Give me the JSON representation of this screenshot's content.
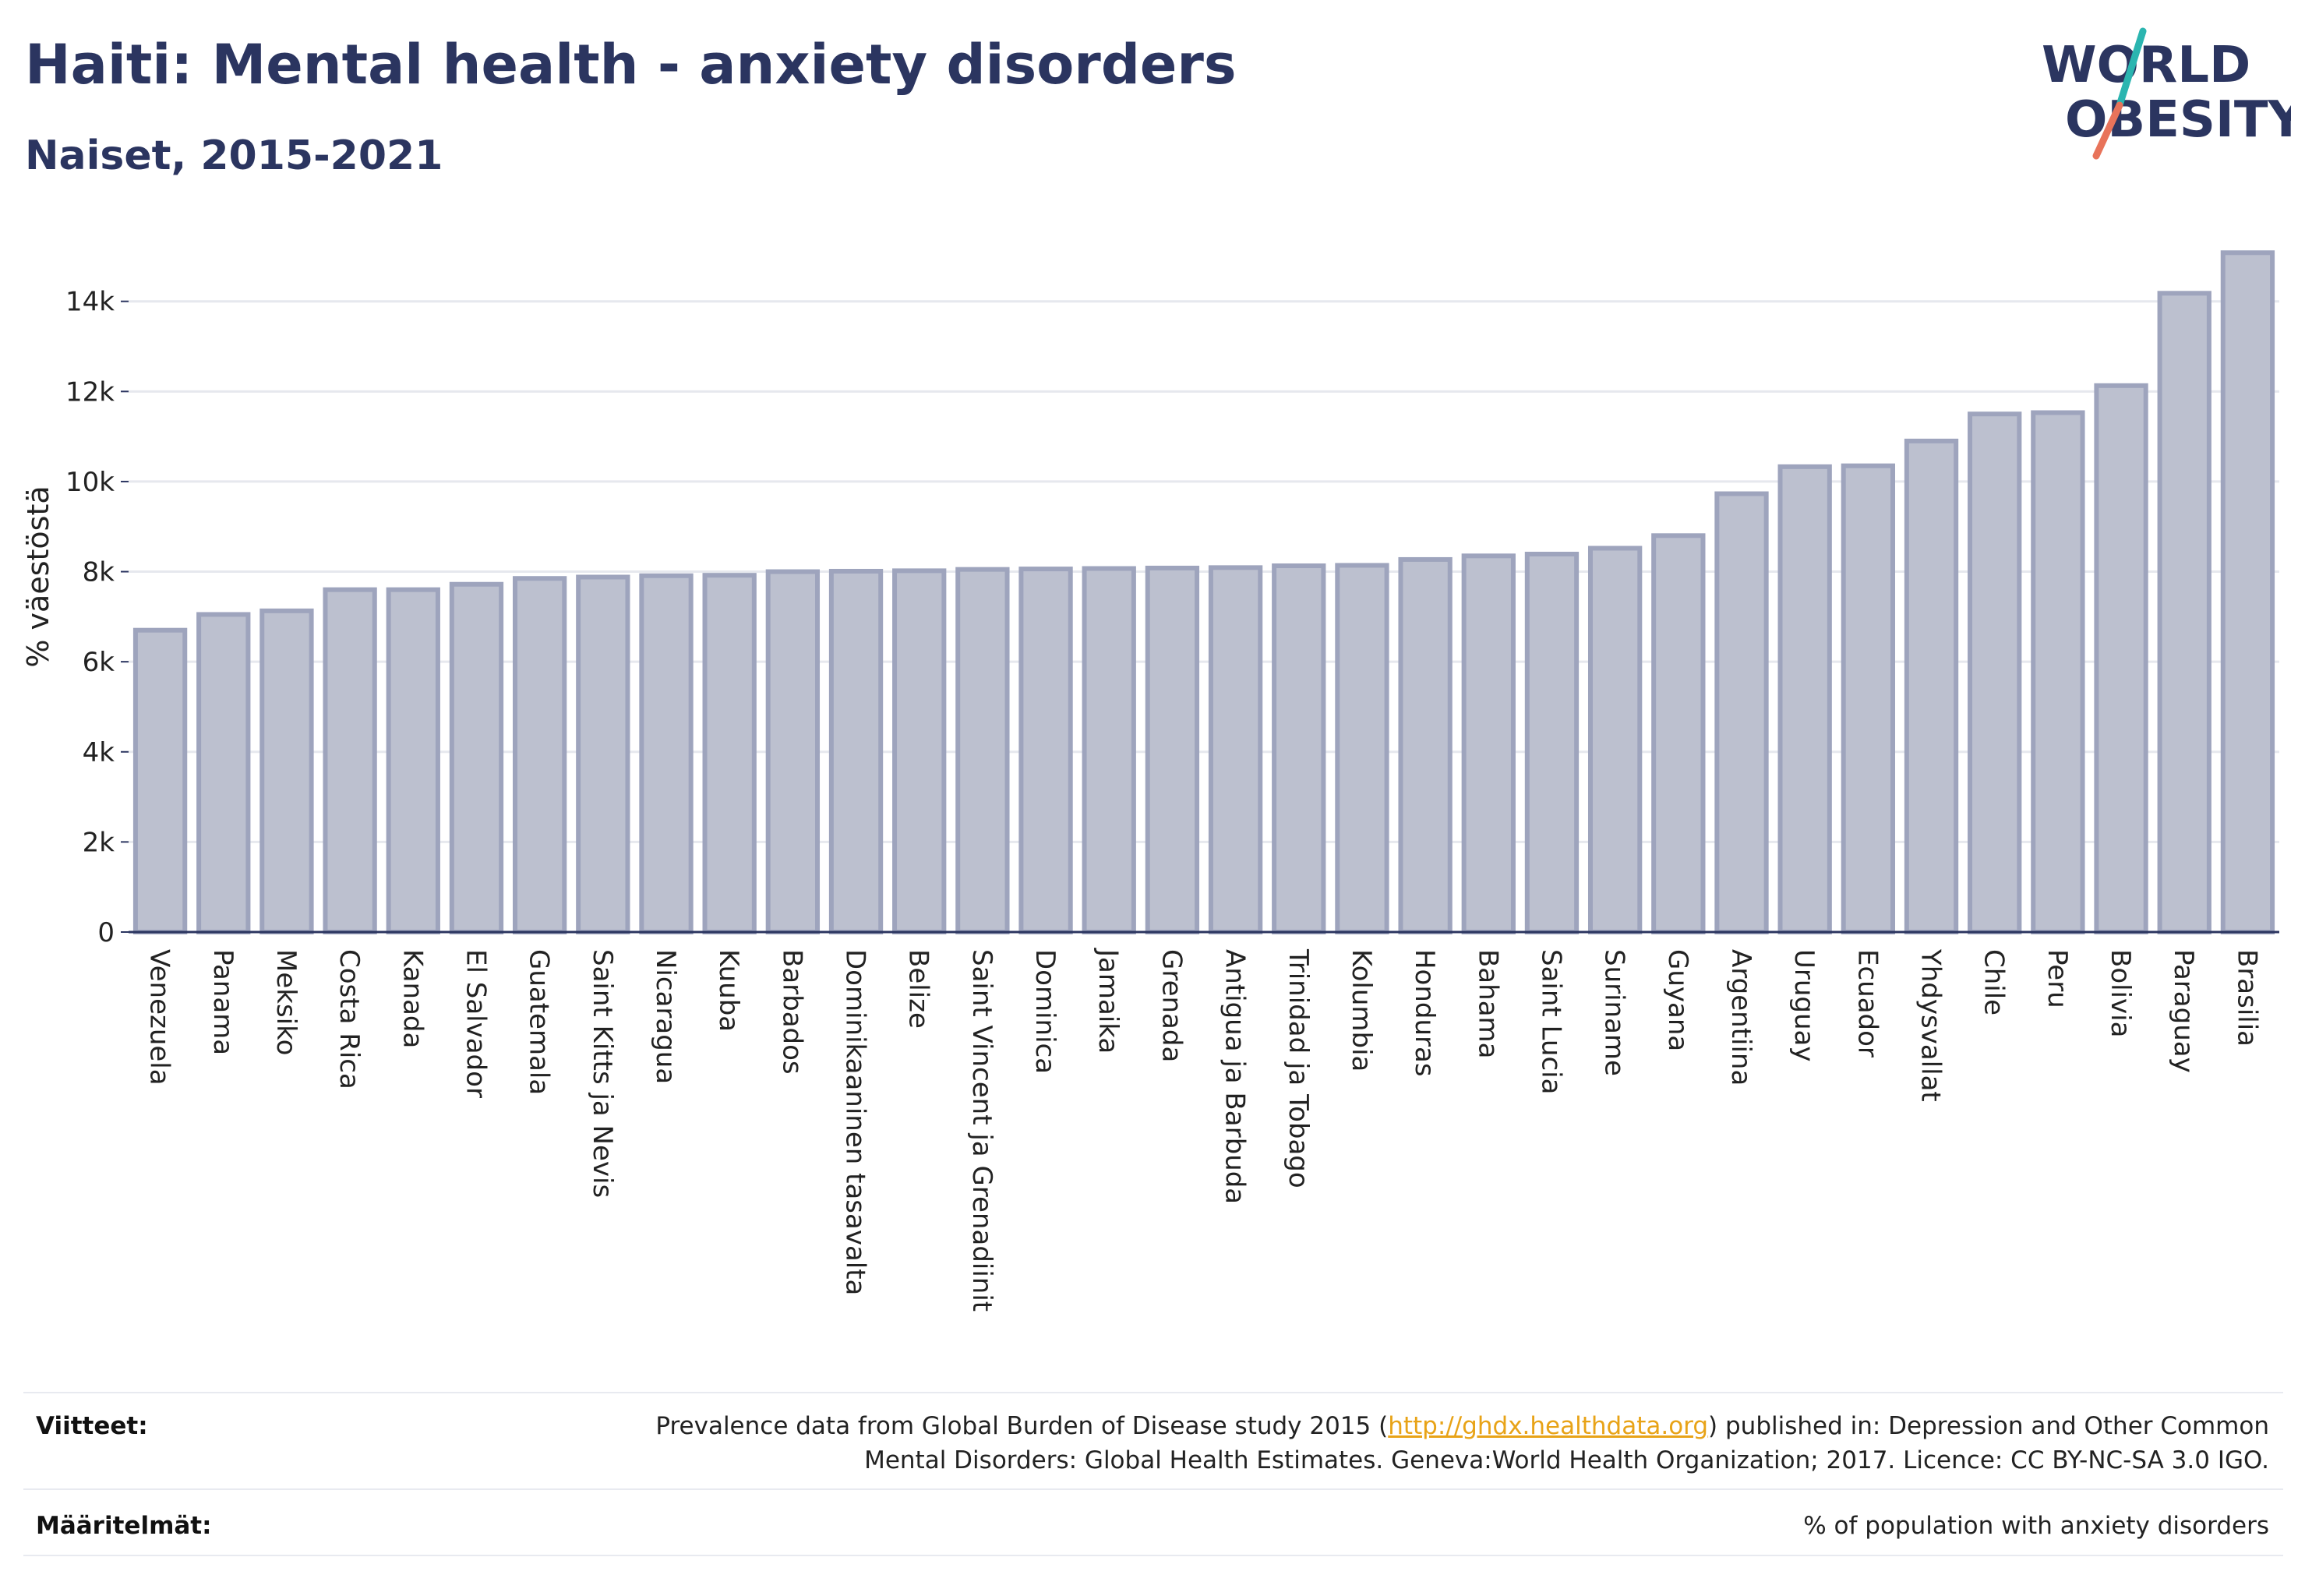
{
  "header": {
    "title": "Haiti: Mental health - anxiety disorders",
    "subtitle": "Naiset, 2015-2021"
  },
  "logo": {
    "line1": "WORLD",
    "line2": "OBESITY",
    "colors": {
      "text": "#2b3560",
      "slash_top": "#2bb5b0",
      "slash_bottom": "#e8735a"
    }
  },
  "chart_data": {
    "type": "bar",
    "ylabel": "% väestöstä",
    "ylim": [
      0,
      15500
    ],
    "yticks": [
      {
        "value": 0,
        "label": "0"
      },
      {
        "value": 2000,
        "label": "2k"
      },
      {
        "value": 4000,
        "label": "4k"
      },
      {
        "value": 6000,
        "label": "6k"
      },
      {
        "value": 8000,
        "label": "8k"
      },
      {
        "value": 10000,
        "label": "10k"
      },
      {
        "value": 12000,
        "label": "12k"
      },
      {
        "value": 14000,
        "label": "14k"
      }
    ],
    "grid": true,
    "bar_color": "#bcc0cf",
    "bar_edge_color": "#9ea4bd",
    "categories": [
      "Venezuela",
      "Panama",
      "Meksiko",
      "Costa Rica",
      "Kanada",
      "El Salvador",
      "Guatemala",
      "Saint Kitts ja Nevis",
      "Nicaragua",
      "Kuuba",
      "Barbados",
      "Dominikaaninen tasavalta",
      "Belize",
      "Saint Vincent ja Grenadiinit",
      "Dominica",
      "Jamaika",
      "Grenada",
      "Antigua ja Barbuda",
      "Trinidad ja Tobago",
      "Kolumbia",
      "Honduras",
      "Bahama",
      "Saint Lucia",
      "Suriname",
      "Guyana",
      "Argentiina",
      "Uruguay",
      "Ecuador",
      "Yhdysvallat",
      "Chile",
      "Peru",
      "Bolivia",
      "Paraguay",
      "Brasilia"
    ],
    "values": [
      6700,
      7050,
      7130,
      7600,
      7600,
      7720,
      7850,
      7880,
      7910,
      7920,
      8000,
      8010,
      8020,
      8050,
      8060,
      8070,
      8080,
      8090,
      8130,
      8140,
      8270,
      8350,
      8390,
      8520,
      8800,
      9730,
      10330,
      10350,
      10900,
      11500,
      11530,
      12130,
      14180,
      15080
    ]
  },
  "footer": {
    "sources_label": "Viitteet:",
    "sources_pre": "Prevalence data from Global Burden of Disease study 2015 (",
    "sources_link": "http://ghdx.healthdata.org",
    "sources_post": ") published in: Depression and Other Common",
    "sources_line2": "Mental Disorders: Global Health Estimates. Geneva:World Health Organization; 2017. Licence: CC BY-NC-SA 3.0 IGO.",
    "definitions_label": "Määritelmät:",
    "definitions_text": "% of population with anxiety disorders"
  }
}
